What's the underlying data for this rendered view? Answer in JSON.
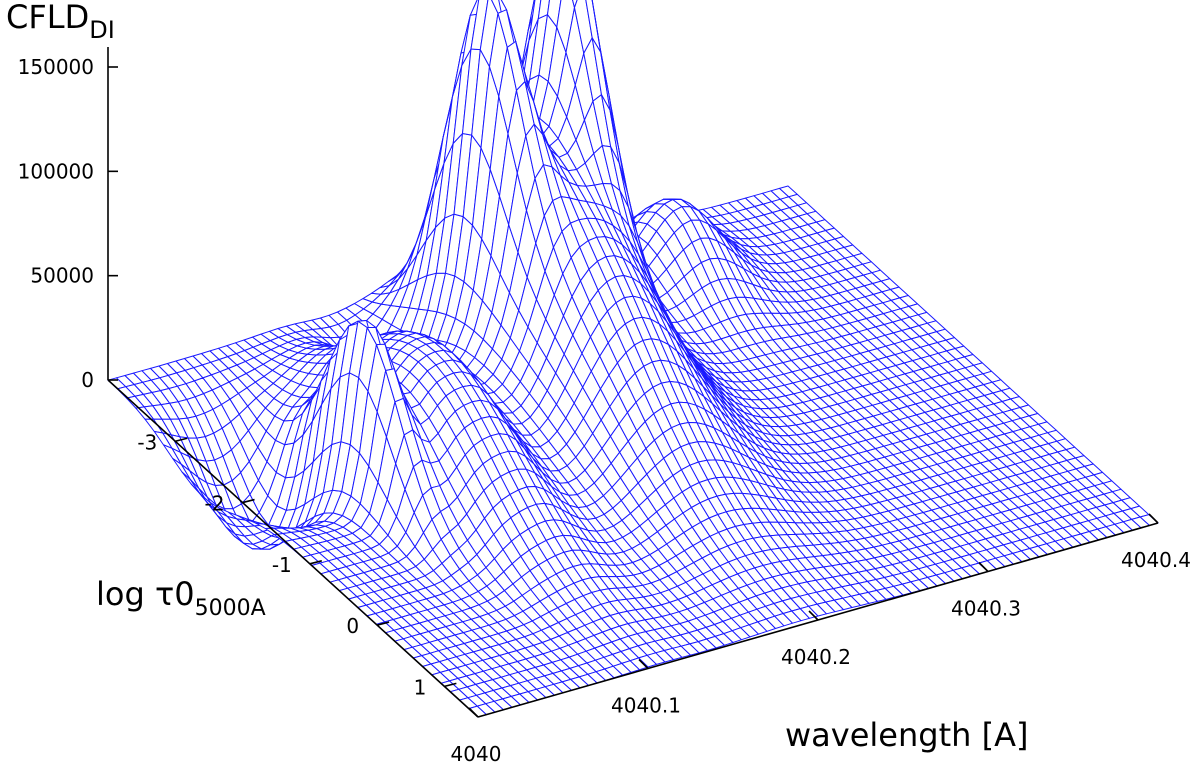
{
  "chart_data": {
    "type": "surface3d",
    "render": "wireframe",
    "mesh_color": "#1a1aff",
    "background": "#ffffff",
    "title": "",
    "z_label": {
      "main": "CFLD",
      "sub": "DI"
    },
    "x_label": "wavelength [A]",
    "y_label": {
      "main": "log τ0",
      "sub": "5000A"
    },
    "x_ticks": [
      "4040",
      "4040.1",
      "4040.2",
      "4040.3",
      "4040.4"
    ],
    "x_tick_values": [
      4040,
      4040.1,
      4040.2,
      4040.3,
      4040.4
    ],
    "y_ticks": [
      "-3",
      "-2",
      "-1",
      "0",
      "1"
    ],
    "y_tick_values": [
      -3,
      -2,
      -1,
      0,
      1
    ],
    "z_ticks": [
      "0",
      "50000",
      "100000",
      "150000"
    ],
    "z_tick_values": [
      0,
      50000,
      100000,
      150000
    ],
    "x_range": [
      4040,
      4040.4
    ],
    "y_range": [
      -4,
      1.5
    ],
    "z_range": [
      0,
      150000
    ],
    "grid": {
      "nx": 81,
      "ny": 41
    },
    "peaks": [
      {
        "x": 4040.061,
        "y": -1.75,
        "z": 78000,
        "sx": 0.008,
        "sy": 0.55
      },
      {
        "x": 4040.083,
        "y": -1.6,
        "z": 34000,
        "sx": 0.012,
        "sy": 0.9
      },
      {
        "x": 4040.108,
        "y": -1.7,
        "z": 52000,
        "sx": 0.016,
        "sy": 1.1
      },
      {
        "x": 4040.176,
        "y": -2.85,
        "z": 110000,
        "sx": 0.01,
        "sy": 0.5
      },
      {
        "x": 4040.182,
        "y": -2.3,
        "z": 55000,
        "sx": 0.028,
        "sy": 1.4
      },
      {
        "x": 4040.228,
        "y": -3.0,
        "z": 155000,
        "sx": 0.012,
        "sy": 0.5
      },
      {
        "x": 4040.21,
        "y": -2.3,
        "z": 60000,
        "sx": 0.028,
        "sy": 1.3
      },
      {
        "x": 4040.305,
        "y": -3.35,
        "z": 42000,
        "sx": 0.02,
        "sy": 0.55
      }
    ],
    "troughs": [
      {
        "x": 4040.03,
        "y": -2.6,
        "z": -45000,
        "sx": 0.02,
        "sy": 0.5
      },
      {
        "x": 4040.128,
        "y": -3.2,
        "z": -22000,
        "sx": 0.014,
        "sy": 0.45
      }
    ]
  }
}
